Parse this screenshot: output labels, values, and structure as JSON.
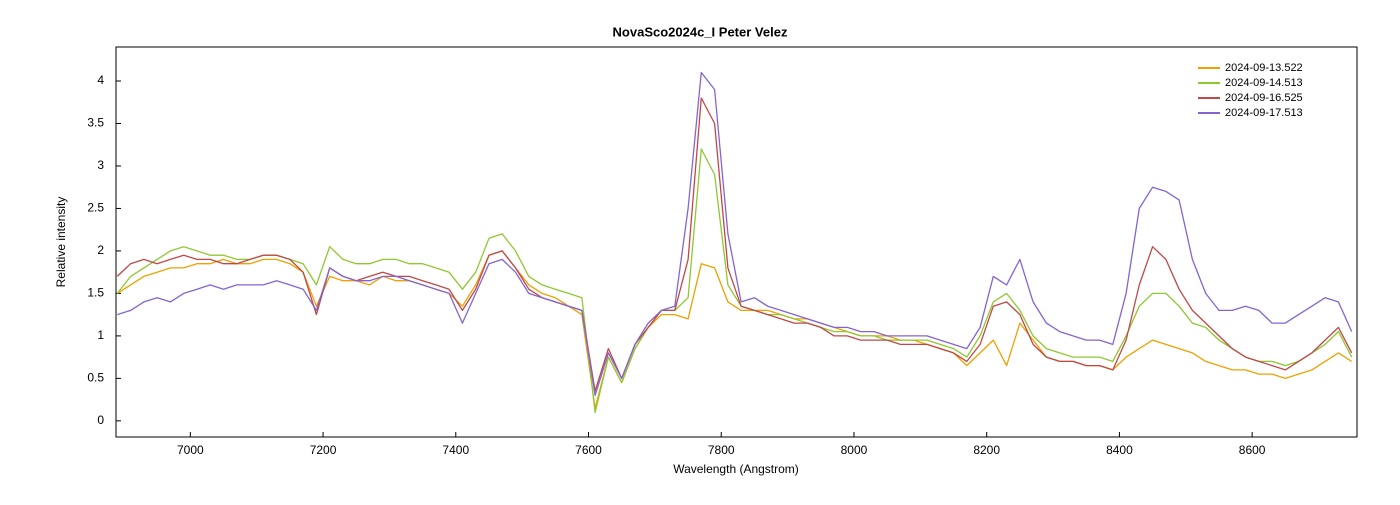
{
  "chart_data": {
    "type": "line",
    "title": "NovaSco2024c_I   Peter Velez",
    "xlabel": "Wavelength (Angstrom)",
    "ylabel": "Relative intensity",
    "xlim": [
      6888,
      8758
    ],
    "ylim": [
      -0.19,
      4.4
    ],
    "xticks": [
      7000,
      7200,
      7400,
      7600,
      7800,
      8000,
      8200,
      8400,
      8600
    ],
    "yticks": [
      0,
      0.5,
      1,
      1.5,
      2,
      2.5,
      3,
      3.5,
      4
    ],
    "legend": "upper right",
    "x": [
      6890,
      6910,
      6930,
      6950,
      6970,
      6990,
      7010,
      7030,
      7050,
      7070,
      7090,
      7110,
      7130,
      7150,
      7170,
      7190,
      7210,
      7230,
      7250,
      7270,
      7290,
      7310,
      7330,
      7350,
      7370,
      7390,
      7410,
      7430,
      7450,
      7470,
      7490,
      7510,
      7530,
      7550,
      7570,
      7590,
      7610,
      7630,
      7650,
      7670,
      7690,
      7710,
      7730,
      7750,
      7770,
      7790,
      7810,
      7830,
      7850,
      7870,
      7890,
      7910,
      7930,
      7950,
      7970,
      7990,
      8010,
      8030,
      8050,
      8070,
      8090,
      8110,
      8130,
      8150,
      8170,
      8190,
      8210,
      8230,
      8250,
      8270,
      8290,
      8310,
      8330,
      8350,
      8370,
      8390,
      8410,
      8430,
      8450,
      8470,
      8490,
      8510,
      8530,
      8550,
      8570,
      8590,
      8610,
      8630,
      8650,
      8670,
      8690,
      8710,
      8730,
      8750
    ],
    "series": [
      {
        "name": "2024-09-13.522",
        "color": "#f0a000",
        "values": [
          1.5,
          1.6,
          1.7,
          1.75,
          1.8,
          1.8,
          1.85,
          1.85,
          1.9,
          1.85,
          1.85,
          1.9,
          1.9,
          1.85,
          1.75,
          1.35,
          1.7,
          1.65,
          1.65,
          1.6,
          1.7,
          1.65,
          1.65,
          1.6,
          1.55,
          1.5,
          1.35,
          1.6,
          1.95,
          2.0,
          1.8,
          1.6,
          1.5,
          1.45,
          1.35,
          1.25,
          0.15,
          0.75,
          0.45,
          0.85,
          1.1,
          1.25,
          1.25,
          1.2,
          1.85,
          1.8,
          1.4,
          1.3,
          1.3,
          1.3,
          1.25,
          1.2,
          1.2,
          1.15,
          1.1,
          1.05,
          1.0,
          1.0,
          1.0,
          0.95,
          0.95,
          0.9,
          0.85,
          0.8,
          0.65,
          0.8,
          0.95,
          0.65,
          1.15,
          0.95,
          0.75,
          0.7,
          0.7,
          0.65,
          0.65,
          0.6,
          0.75,
          0.85,
          0.95,
          0.9,
          0.85,
          0.8,
          0.7,
          0.65,
          0.6,
          0.6,
          0.55,
          0.55,
          0.5,
          0.55,
          0.6,
          0.7,
          0.8,
          0.7
        ]
      },
      {
        "name": "2024-09-14.513",
        "color": "#90c830",
        "values": [
          1.5,
          1.7,
          1.8,
          1.9,
          2.0,
          2.05,
          2.0,
          1.95,
          1.95,
          1.9,
          1.9,
          1.95,
          1.95,
          1.9,
          1.85,
          1.6,
          2.05,
          1.9,
          1.85,
          1.85,
          1.9,
          1.9,
          1.85,
          1.85,
          1.8,
          1.75,
          1.55,
          1.75,
          2.15,
          2.2,
          2.0,
          1.7,
          1.6,
          1.55,
          1.5,
          1.45,
          0.1,
          0.75,
          0.45,
          0.85,
          1.1,
          1.3,
          1.3,
          1.45,
          3.2,
          2.9,
          1.6,
          1.35,
          1.3,
          1.25,
          1.25,
          1.2,
          1.15,
          1.1,
          1.05,
          1.05,
          1.0,
          1.0,
          0.95,
          0.95,
          0.95,
          0.95,
          0.9,
          0.85,
          0.75,
          1.0,
          1.4,
          1.5,
          1.3,
          1.0,
          0.85,
          0.8,
          0.75,
          0.75,
          0.75,
          0.7,
          1.0,
          1.35,
          1.5,
          1.5,
          1.35,
          1.15,
          1.1,
          0.95,
          0.85,
          0.75,
          0.7,
          0.7,
          0.65,
          0.7,
          0.8,
          0.9,
          1.05,
          0.75
        ]
      },
      {
        "name": "2024-09-16.525",
        "color": "#c04848",
        "values": [
          1.7,
          1.85,
          1.9,
          1.85,
          1.9,
          1.95,
          1.9,
          1.9,
          1.85,
          1.85,
          1.9,
          1.95,
          1.95,
          1.9,
          1.75,
          1.25,
          1.8,
          1.7,
          1.65,
          1.7,
          1.75,
          1.7,
          1.7,
          1.65,
          1.6,
          1.55,
          1.3,
          1.55,
          1.95,
          2.0,
          1.8,
          1.55,
          1.45,
          1.4,
          1.35,
          1.3,
          0.35,
          0.85,
          0.5,
          0.9,
          1.1,
          1.3,
          1.3,
          1.9,
          3.8,
          3.5,
          1.8,
          1.35,
          1.3,
          1.25,
          1.2,
          1.15,
          1.15,
          1.1,
          1.0,
          1.0,
          0.95,
          0.95,
          0.95,
          0.9,
          0.9,
          0.9,
          0.85,
          0.8,
          0.7,
          0.9,
          1.35,
          1.4,
          1.25,
          0.9,
          0.75,
          0.7,
          0.7,
          0.65,
          0.65,
          0.6,
          0.95,
          1.6,
          2.05,
          1.9,
          1.55,
          1.3,
          1.15,
          1.0,
          0.85,
          0.75,
          0.7,
          0.65,
          0.6,
          0.7,
          0.8,
          0.95,
          1.1,
          0.8
        ]
      },
      {
        "name": "2024-09-17.513",
        "color": "#8464d4",
        "values": [
          1.25,
          1.3,
          1.4,
          1.45,
          1.4,
          1.5,
          1.55,
          1.6,
          1.55,
          1.6,
          1.6,
          1.6,
          1.65,
          1.6,
          1.55,
          1.3,
          1.8,
          1.7,
          1.65,
          1.65,
          1.7,
          1.7,
          1.65,
          1.6,
          1.55,
          1.5,
          1.15,
          1.5,
          1.85,
          1.9,
          1.75,
          1.5,
          1.45,
          1.4,
          1.35,
          1.3,
          0.3,
          0.8,
          0.5,
          0.9,
          1.15,
          1.3,
          1.35,
          2.5,
          4.1,
          3.9,
          2.2,
          1.4,
          1.45,
          1.35,
          1.3,
          1.25,
          1.2,
          1.15,
          1.1,
          1.1,
          1.05,
          1.05,
          1.0,
          1.0,
          1.0,
          1.0,
          0.95,
          0.9,
          0.85,
          1.1,
          1.7,
          1.6,
          1.9,
          1.4,
          1.15,
          1.05,
          1.0,
          0.95,
          0.95,
          0.9,
          1.5,
          2.5,
          2.75,
          2.7,
          2.6,
          1.9,
          1.5,
          1.3,
          1.3,
          1.35,
          1.3,
          1.15,
          1.15,
          1.25,
          1.35,
          1.45,
          1.4,
          1.05
        ]
      }
    ]
  }
}
